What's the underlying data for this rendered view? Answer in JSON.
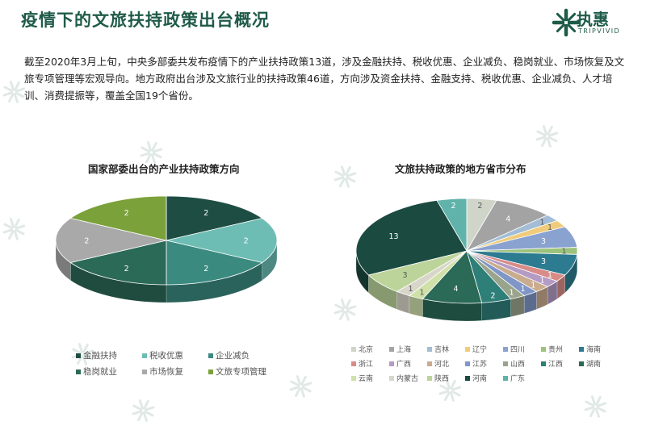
{
  "page": {
    "title": "疫情下的文旅扶持政策出台概况",
    "logo_text": "执惠",
    "logo_sub": "TRIPVIVID",
    "intro": "截至2020年3月上旬，中央多部委共发布疫情下的产业扶持政策13道，涉及金融扶持、税收优惠、企业减负、稳岗就业、市场恢复及文旅专项管理等宏观导向。地方政府出台涉及文旅行业的扶持政策46道，方向涉及资金扶持、金融支持、税收优惠、企业减负、人才培训、消费提振等，覆盖全国19个省份。",
    "brand_color": "#1f5b49"
  },
  "chart_data": [
    {
      "type": "pie",
      "style": "3d",
      "title": "国家部委出台的产业扶持政策方向",
      "legend_position": "bottom",
      "categories": [
        "金融扶持",
        "税收优惠",
        "企业减负",
        "稳岗就业",
        "市场恢复",
        "文旅专项管理"
      ],
      "values": [
        2,
        2,
        2,
        2,
        2,
        2
      ],
      "colors": [
        "#1e4d43",
        "#6dbdb4",
        "#3b8a80",
        "#2c6a58",
        "#a9a9a9",
        "#7ba13a"
      ]
    },
    {
      "type": "pie",
      "style": "3d",
      "title": "文旅扶持政策的地方省市分布",
      "legend_position": "bottom",
      "categories": [
        "北京",
        "上海",
        "吉林",
        "辽宁",
        "四川",
        "贵州",
        "海南",
        "浙江",
        "广西",
        "河北",
        "江苏",
        "山西",
        "江西",
        "湖南",
        "云南",
        "内蒙古",
        "陕西",
        "河南",
        "广东"
      ],
      "values": [
        2,
        4,
        1,
        1,
        3,
        1,
        3,
        1,
        1,
        1,
        1,
        1,
        2,
        4,
        1,
        1,
        3,
        13,
        2
      ],
      "colors": [
        "#cfd5c9",
        "#a3a3a3",
        "#a3bdd6",
        "#f0cc7a",
        "#8aa2cf",
        "#9cc37c",
        "#2c7b91",
        "#d98c87",
        "#b39bc4",
        "#c9ab8d",
        "#7f96c7",
        "#9aa48c",
        "#2f7f79",
        "#2a6a57",
        "#cfe0a9",
        "#d8d6c9",
        "#bcd49a",
        "#1b4a40",
        "#5fb3ab"
      ]
    }
  ]
}
